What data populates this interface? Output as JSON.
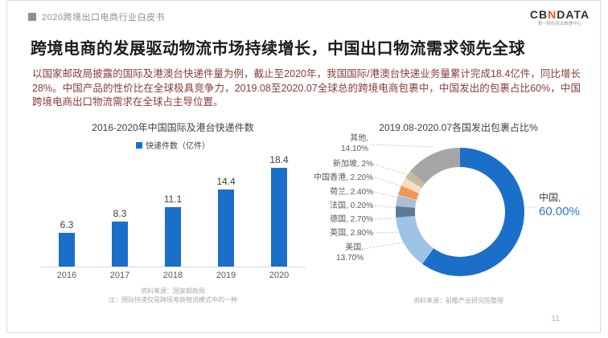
{
  "page": {
    "header": {
      "breadcrumb": "2020跨境出口电商行业白皮书",
      "logo_cb": "CB",
      "logo_n": "N",
      "logo_rest": "DATA",
      "logo_sub": "第一财经商业数据中心"
    },
    "title": "跨境电商的发展驱动物流市场持续增长，中国出口物流需求领先全球",
    "body": "以国家邮政局披露的国际及港澳台快递件量为例，截止至2020年，我国国际/港澳台快递业务量累计完成18.4亿件，同比增长28%。中国产品的性价比在全球极具竞争力，2019.08至2020.07全球总的跨境电商包裹中，中国发出的包裹占比60%，中国跨境电商出口物流需求在全球占主导位置。",
    "page_number": "11"
  },
  "colors": {
    "accent_blue": "#1b6fc9",
    "china_pct_blue": "#2878dd",
    "title_black": "#1c1c1c",
    "body_maroon": "#8a3a3a",
    "gray_text": "#595959"
  },
  "chart_data": [
    {
      "type": "bar",
      "title": "2016-2020年中国国际及港台快递件数",
      "legend": "快递件数（亿件）",
      "categories": [
        "2016",
        "2017",
        "2018",
        "2019",
        "2020"
      ],
      "values": [
        6.3,
        8.3,
        11.1,
        14.4,
        18.4
      ],
      "value_labels": [
        "6.3",
        "8.3",
        "11.1",
        "14.4",
        "18.4"
      ],
      "ylabel": "快递件数（亿件）",
      "ylim": [
        0,
        20
      ],
      "bar_color": "#1b6fc9",
      "grid": false,
      "legend_position": "top",
      "source": "资料来源：国家邮政局",
      "note": "注：国际快递仅是跨境电商物流模式中的一种"
    },
    {
      "type": "pie",
      "subtype": "donut",
      "title": "2019.08-2020.07各国发出包裹占比%",
      "legend_position": "callouts",
      "segments": [
        {
          "label": "中国",
          "value": 60.0,
          "display": "60.00%",
          "callout": "中国,",
          "color": "#1b6fc9"
        },
        {
          "label": "美国",
          "value": 13.7,
          "display": "13.70%",
          "callout": "美国, 13.70%",
          "color": "#9dc3e6"
        },
        {
          "label": "英国",
          "value": 2.8,
          "display": "2.80%",
          "callout": "英国, 2.80%",
          "color": "#5b7b95"
        },
        {
          "label": "德国",
          "value": 2.7,
          "display": "2.70%",
          "callout": "德国, 2.70%",
          "color": "#aabfd3"
        },
        {
          "label": "法国",
          "value": 0.2,
          "display": "0.20%",
          "callout": "法国, 0.20%",
          "color": "#d6dce4"
        },
        {
          "label": "荷兰",
          "value": 2.4,
          "display": "2.40%",
          "callout": "荷兰, 2.40%",
          "color": "#f29853"
        },
        {
          "label": "中国香港",
          "value": 2.2,
          "display": "2.20%",
          "callout": "中国香港, 2.20%",
          "color": "#f9ddc0"
        },
        {
          "label": "新加坡",
          "value": 2.0,
          "display": "2%",
          "callout": "新加坡, 2%",
          "color": "#c5bc9e"
        },
        {
          "label": "其他",
          "value": 14.1,
          "display": "14.10%",
          "callout": "其他, 14.10%",
          "color": "#a6a6a6"
        }
      ],
      "source": "资料来源：前瞻产业研究院整理"
    }
  ]
}
